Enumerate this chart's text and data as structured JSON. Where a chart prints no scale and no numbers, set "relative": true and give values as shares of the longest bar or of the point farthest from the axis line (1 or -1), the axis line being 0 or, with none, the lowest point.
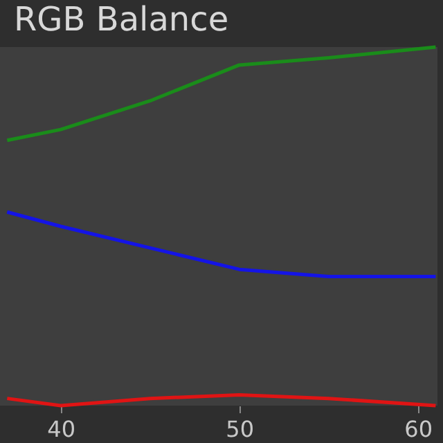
{
  "chart_data": {
    "type": "line",
    "title": "RGB Balance",
    "relative": true,
    "x": [
      37,
      40,
      45,
      50,
      55,
      61
    ],
    "xlim": [
      36.6,
      61.1
    ],
    "xticks": [
      40,
      50,
      60
    ],
    "legend": false,
    "marker": "none",
    "line_style": "solid",
    "series": [
      {
        "color": "#1a8c1a",
        "values": [
          0.74,
          0.77,
          0.85,
          0.95,
          0.97,
          1
        ]
      },
      {
        "color": "#1414e6",
        "values": [
          0.54,
          0.5,
          0.44,
          0.38,
          0.36,
          0.36
        ]
      },
      {
        "color": "#e01414",
        "values": [
          0.02,
          0,
          0.02,
          0.03,
          0.02,
          0
        ]
      }
    ]
  }
}
